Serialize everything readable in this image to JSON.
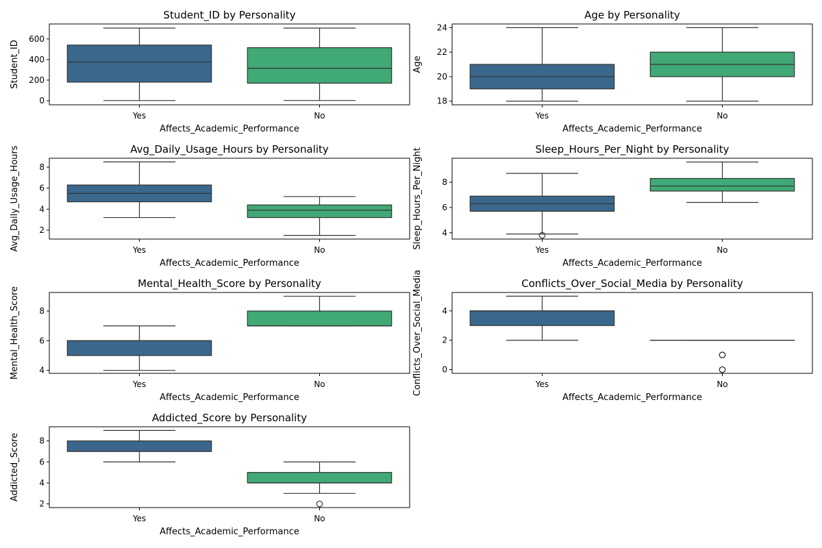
{
  "colors": {
    "yes": "#3b678c",
    "no": "#41a976",
    "line": "#333333"
  },
  "chart_data": [
    {
      "type": "box",
      "title": "Student_ID by Personality",
      "xlabel": "Affects_Academic_Performance",
      "ylabel": "Student_ID",
      "categories": [
        "Yes",
        "No"
      ],
      "ylim": [
        -40,
        745
      ],
      "yticks": [
        0,
        200,
        400,
        600
      ],
      "boxes": [
        {
          "category": "Yes",
          "whislo": 1,
          "q1": 180,
          "median": 375,
          "q3": 540,
          "whishi": 705,
          "fliers": []
        },
        {
          "category": "No",
          "whislo": 2,
          "q1": 170,
          "median": 315,
          "q3": 515,
          "whishi": 705,
          "fliers": []
        }
      ]
    },
    {
      "type": "box",
      "title": "Age by Personality",
      "xlabel": "Affects_Academic_Performance",
      "ylabel": "Age",
      "categories": [
        "Yes",
        "No"
      ],
      "ylim": [
        17.7,
        24.3
      ],
      "yticks": [
        18,
        20,
        22,
        24
      ],
      "boxes": [
        {
          "category": "Yes",
          "whislo": 18,
          "q1": 19,
          "median": 20,
          "q3": 21,
          "whishi": 24,
          "fliers": []
        },
        {
          "category": "No",
          "whislo": 18,
          "q1": 20,
          "median": 21,
          "q3": 22,
          "whishi": 24,
          "fliers": []
        }
      ]
    },
    {
      "type": "box",
      "title": "Avg_Daily_Usage_Hours by Personality",
      "xlabel": "Affects_Academic_Performance",
      "ylabel": "Avg_Daily_Usage_Hours",
      "categories": [
        "Yes",
        "No"
      ],
      "ylim": [
        1.15,
        8.85
      ],
      "yticks": [
        2,
        4,
        6,
        8
      ],
      "boxes": [
        {
          "category": "Yes",
          "whislo": 3.2,
          "q1": 4.7,
          "median": 5.5,
          "q3": 6.3,
          "whishi": 8.5,
          "fliers": []
        },
        {
          "category": "No",
          "whislo": 1.5,
          "q1": 3.2,
          "median": 3.9,
          "q3": 4.4,
          "whishi": 5.2,
          "fliers": []
        }
      ]
    },
    {
      "type": "box",
      "title": "Sleep_Hours_Per_Night by Personality",
      "xlabel": "Affects_Academic_Performance",
      "ylabel": "Sleep_Hours_Per_Night",
      "categories": [
        "Yes",
        "No"
      ],
      "ylim": [
        3.5,
        9.9
      ],
      "yticks": [
        4,
        6,
        8
      ],
      "boxes": [
        {
          "category": "Yes",
          "whislo": 3.9,
          "q1": 5.7,
          "median": 6.3,
          "q3": 6.9,
          "whishi": 8.7,
          "fliers": [
            3.8
          ]
        },
        {
          "category": "No",
          "whislo": 6.4,
          "q1": 7.3,
          "median": 7.7,
          "q3": 8.3,
          "whishi": 9.6,
          "fliers": []
        }
      ]
    },
    {
      "type": "box",
      "title": "Mental_Health_Score by Personality",
      "xlabel": "Affects_Academic_Performance",
      "ylabel": "Mental_Health_Score",
      "categories": [
        "Yes",
        "No"
      ],
      "ylim": [
        3.8,
        9.25
      ],
      "yticks": [
        4,
        6,
        8
      ],
      "boxes": [
        {
          "category": "Yes",
          "whislo": 4,
          "q1": 5,
          "median": 6,
          "q3": 6,
          "whishi": 7,
          "fliers": []
        },
        {
          "category": "No",
          "whislo": 7,
          "q1": 7,
          "median": 7,
          "q3": 8,
          "whishi": 9,
          "fliers": []
        }
      ]
    },
    {
      "type": "box",
      "title": "Conflicts_Over_Social_Media by Personality",
      "xlabel": "Affects_Academic_Performance",
      "ylabel": "Conflicts_Over_Social_Media",
      "categories": [
        "Yes",
        "No"
      ],
      "ylim": [
        -0.25,
        5.25
      ],
      "yticks": [
        0,
        2,
        4
      ],
      "boxes": [
        {
          "category": "Yes",
          "whislo": 2,
          "q1": 3,
          "median": 4,
          "q3": 4,
          "whishi": 5,
          "fliers": []
        },
        {
          "category": "No",
          "whislo": 2,
          "q1": 2,
          "median": 2,
          "q3": 2,
          "whishi": 2,
          "fliers": [
            1,
            1,
            0,
            0
          ]
        }
      ]
    },
    {
      "type": "box",
      "title": "Addicted_Score by Personality",
      "xlabel": "Affects_Academic_Performance",
      "ylabel": "Addicted_Score",
      "categories": [
        "Yes",
        "No"
      ],
      "ylim": [
        1.65,
        9.35
      ],
      "yticks": [
        2,
        4,
        6,
        8
      ],
      "boxes": [
        {
          "category": "Yes",
          "whislo": 6,
          "q1": 7,
          "median": 7,
          "q3": 8,
          "whishi": 9,
          "fliers": []
        },
        {
          "category": "No",
          "whislo": 3,
          "q1": 4,
          "median": 4,
          "q3": 5,
          "whishi": 6,
          "fliers": [
            2
          ]
        }
      ]
    }
  ]
}
